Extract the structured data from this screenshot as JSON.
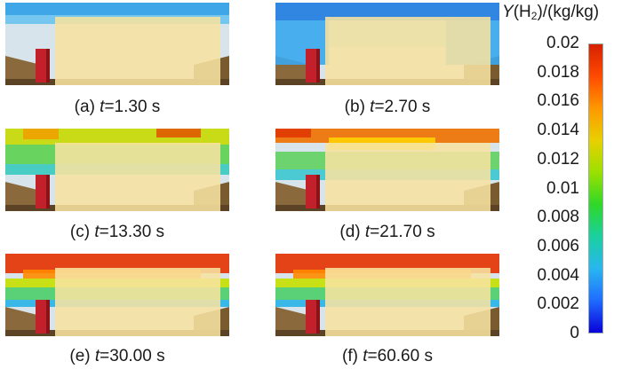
{
  "colorbar": {
    "title": "Y(H2)/(kg/kg)",
    "title_prefix": "Y(H",
    "title_sub": "2",
    "title_suffix": ")/(kg/kg)",
    "ticks": [
      "0.02",
      "0.018",
      "0.016",
      "0.014",
      "0.012",
      "0.01",
      "0.008",
      "0.006",
      "0.004",
      "0.002",
      "0"
    ],
    "gradient": [
      "#d62000",
      "#ff4a00",
      "#ff9800",
      "#e8d000",
      "#9be000",
      "#2fd828",
      "#1ad0a0",
      "#29b6f0",
      "#1f6cff",
      "#0a00d8"
    ]
  },
  "panels": [
    {
      "id": "a",
      "label": "(a) ",
      "t": "t",
      "value": "=1.30 s",
      "scene": "early"
    },
    {
      "id": "b",
      "label": "(b) ",
      "t": "t",
      "value": "=2.70 s",
      "scene": "spread"
    },
    {
      "id": "c",
      "label": "(c) ",
      "t": "t",
      "value": "=13.30 s",
      "scene": "mid"
    },
    {
      "id": "d",
      "label": "(d) ",
      "t": "t",
      "value": "=21.70 s",
      "scene": "mid2"
    },
    {
      "id": "e",
      "label": "(e) ",
      "t": "t",
      "value": "=30.00 s",
      "scene": "late"
    },
    {
      "id": "f",
      "label": "(f) ",
      "t": "t",
      "value": "=60.60 s",
      "scene": "late"
    }
  ]
}
